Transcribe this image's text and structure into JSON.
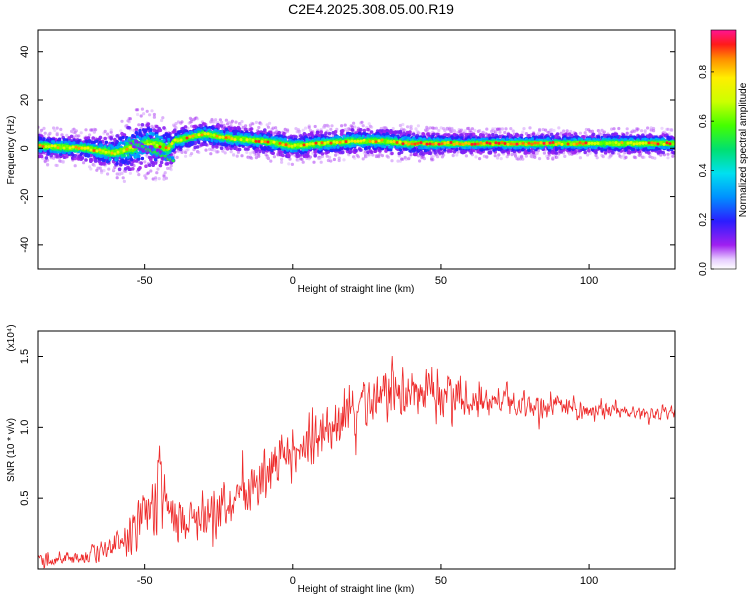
{
  "title": "C2E4.2025.308.05.00.R19",
  "colors": {
    "snr_line": "#ee2a2a",
    "background": "#ffffff",
    "axes": "#000000"
  },
  "chart_data": [
    {
      "type": "heatmap",
      "xlabel": "Height of straight line (km)",
      "ylabel": "Frequency (Hz)",
      "xlim": [
        -86,
        129
      ],
      "ylim": [
        -50,
        49
      ],
      "x_ticks": [
        "-50",
        "0",
        "50",
        "100"
      ],
      "y_ticks": [
        "40",
        "20",
        "0",
        "-20",
        "-40"
      ],
      "colorbar": {
        "label": "Normalized spectral amplitude",
        "range": [
          0.0,
          0.97
        ],
        "ticks": [
          "0.0",
          "0.2",
          "0.4",
          "0.6",
          "0.8"
        ],
        "colormap": "rainbow (white-violet-blue-cyan-green-yellow-orange-red-magenta)"
      },
      "ridge": {
        "description": "Narrow band of high amplitude near 0 to 5 Hz across the full height range",
        "x": [
          -86,
          -70,
          -60,
          -55,
          -48,
          -42,
          -40,
          -30,
          -20,
          -10,
          0,
          10,
          20,
          30,
          40,
          50,
          60,
          70,
          80,
          90,
          100,
          110,
          120,
          129
        ],
        "center_hz": [
          1,
          0,
          -2,
          0,
          2,
          0,
          3,
          6,
          4,
          3,
          1,
          2,
          3,
          3,
          2,
          2,
          2,
          2,
          2,
          2,
          2,
          2,
          2,
          2
        ],
        "halfwidth_hz": [
          3,
          3,
          4,
          6,
          6,
          5,
          3,
          3,
          3,
          3,
          3,
          3,
          3,
          3,
          3,
          2.5,
          2.5,
          2.5,
          2.5,
          2.5,
          2.5,
          2.5,
          2.5,
          2.5
        ]
      }
    },
    {
      "type": "line",
      "xlabel": "Height of straight line (km)",
      "ylabel": "SNR (10 * v/v)",
      "y_multiplier": "(x10⁴)",
      "xlim": [
        -86,
        129
      ],
      "ylim": [
        0,
        16800
      ],
      "x_ticks": [
        "-50",
        "0",
        "50",
        "100"
      ],
      "y_ticks": [
        "0.5",
        "1.0",
        "1.5"
      ],
      "series": [
        {
          "x": [
            -86,
            -80,
            -70,
            -60,
            -55,
            -50,
            -46,
            -45,
            -44,
            -40,
            -35,
            -30,
            -25,
            -20,
            -15,
            -10,
            -5,
            0,
            5,
            10,
            15,
            20,
            25,
            30,
            35,
            40,
            45,
            50,
            55,
            60,
            65,
            70,
            75,
            80,
            85,
            90,
            95,
            100,
            105,
            110,
            115,
            120,
            125,
            129
          ],
          "y": [
            600,
            700,
            900,
            1500,
            2800,
            4000,
            4500,
            9000,
            5000,
            3500,
            3500,
            3800,
            4200,
            5000,
            5600,
            6500,
            7400,
            8000,
            9000,
            9600,
            10200,
            11000,
            11600,
            12000,
            12600,
            12800,
            12600,
            12300,
            12200,
            12000,
            12100,
            11900,
            11800,
            11600,
            11500,
            11400,
            11300,
            11200,
            11200,
            11100,
            11100,
            11000,
            11000,
            11000
          ],
          "noise_amp": [
            600,
            600,
            700,
            1100,
            1400,
            1900,
            2200,
            1500,
            2200,
            1700,
            1500,
            1600,
            1800,
            1900,
            2000,
            2100,
            2200,
            2300,
            2400,
            2400,
            2400,
            2400,
            2300,
            2300,
            2300,
            2200,
            2100,
            1900,
            1700,
            1500,
            1400,
            1300,
            1200,
            1100,
            1000,
            900,
            800,
            700,
            650,
            600,
            600,
            550,
            550,
            550
          ]
        }
      ]
    }
  ]
}
